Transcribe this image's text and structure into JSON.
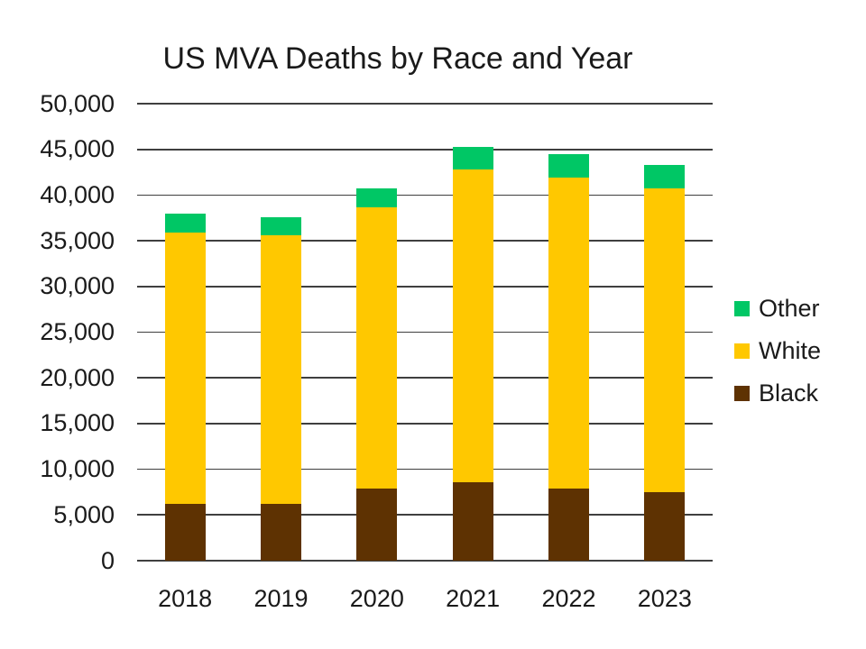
{
  "chart_data": {
    "type": "bar",
    "stacked": true,
    "title": "US MVA Deaths by Race and Year",
    "categories": [
      "2018",
      "2019",
      "2020",
      "2021",
      "2022",
      "2023"
    ],
    "series": [
      {
        "name": "Black",
        "color": "#5e3202",
        "values": [
          6200,
          6200,
          7900,
          8600,
          7900,
          7500
        ]
      },
      {
        "name": "White",
        "color": "#ffc800",
        "values": [
          29700,
          29400,
          30800,
          34200,
          34000,
          33200
        ]
      },
      {
        "name": "Other",
        "color": "#00c765",
        "values": [
          2100,
          2000,
          2000,
          2500,
          2600,
          2600
        ]
      }
    ],
    "totals": [
      38000,
      37600,
      40700,
      45300,
      44500,
      43300
    ],
    "xlabel": "",
    "ylabel": "",
    "ylim": [
      0,
      50000
    ],
    "ytick_step": 5000,
    "ytick_labels": [
      "0",
      "5,000",
      "10,000",
      "15,000",
      "20,000",
      "25,000",
      "30,000",
      "35,000",
      "40,000",
      "45,000",
      "50,000"
    ],
    "grid": true,
    "legend_position": "right",
    "legend_order": [
      "Other",
      "White",
      "Black"
    ]
  },
  "colors": {
    "grid": "#3f3f3f",
    "text": "#1a1a1a",
    "background": "#ffffff"
  }
}
